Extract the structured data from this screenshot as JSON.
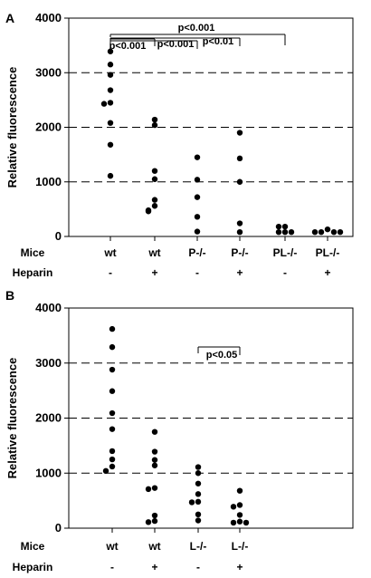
{
  "chart_data": [
    {
      "type": "scatter",
      "panel_label": "A",
      "ylabel": "Relative fluorescence",
      "ylim": [
        0,
        4000
      ],
      "yticks": [
        0,
        1000,
        2000,
        3000,
        4000
      ],
      "dashed_gridlines_at": [
        1000,
        2000,
        3000
      ],
      "row_labels": {
        "mice": "Mice",
        "heparin": "Heparin"
      },
      "groups": [
        {
          "mice": "wt",
          "heparin": "-",
          "values": [
            3390,
            3150,
            2960,
            2680,
            2450,
            2430,
            2080,
            1680,
            1110
          ]
        },
        {
          "mice": "wt",
          "heparin": "+",
          "values": [
            2140,
            2040,
            1200,
            1050,
            670,
            560,
            480,
            460
          ]
        },
        {
          "mice": "P-/-",
          "heparin": "-",
          "values": [
            1450,
            1040,
            720,
            360,
            90
          ]
        },
        {
          "mice": "P-/-",
          "heparin": "+",
          "values": [
            1900,
            1430,
            1000,
            240,
            80
          ]
        },
        {
          "mice": "PL-/-",
          "heparin": "-",
          "values": [
            180,
            180,
            80,
            80,
            80
          ]
        },
        {
          "mice": "PL-/-",
          "heparin": "+",
          "values": [
            130,
            80,
            80,
            80,
            80
          ]
        }
      ],
      "annotations": [
        {
          "text": "p<0.001",
          "from_group": 0,
          "to_group": 4
        },
        {
          "text": "p<0.001",
          "from_group": 0,
          "to_group": 1
        },
        {
          "text": "p<0.001",
          "from_group": 0,
          "to_group": 2
        },
        {
          "text": "p<0.01",
          "from_group": 0,
          "to_group": 3
        }
      ]
    },
    {
      "type": "scatter",
      "panel_label": "B",
      "ylabel": "Relative fluorescence",
      "ylim": [
        0,
        4000
      ],
      "yticks": [
        0,
        1000,
        2000,
        3000,
        4000
      ],
      "dashed_gridlines_at": [
        1000,
        2000,
        3000
      ],
      "row_labels": {
        "mice": "Mice",
        "heparin": "Heparin"
      },
      "groups": [
        {
          "mice": "wt",
          "heparin": "-",
          "values": [
            3620,
            3290,
            2880,
            2490,
            2090,
            1800,
            1400,
            1250,
            1120,
            1040
          ]
        },
        {
          "mice": "wt",
          "heparin": "+",
          "values": [
            1750,
            1390,
            1240,
            1140,
            730,
            710,
            230,
            130,
            110
          ]
        },
        {
          "mice": "L-/-",
          "heparin": "-",
          "values": [
            1110,
            1000,
            810,
            620,
            480,
            470,
            250,
            140
          ]
        },
        {
          "mice": "L-/-",
          "heparin": "+",
          "values": [
            680,
            420,
            390,
            240,
            120,
            100,
            100
          ]
        }
      ],
      "annotations": [
        {
          "text": "p<0.05",
          "from_group": 2,
          "to_group": 3
        }
      ]
    }
  ]
}
